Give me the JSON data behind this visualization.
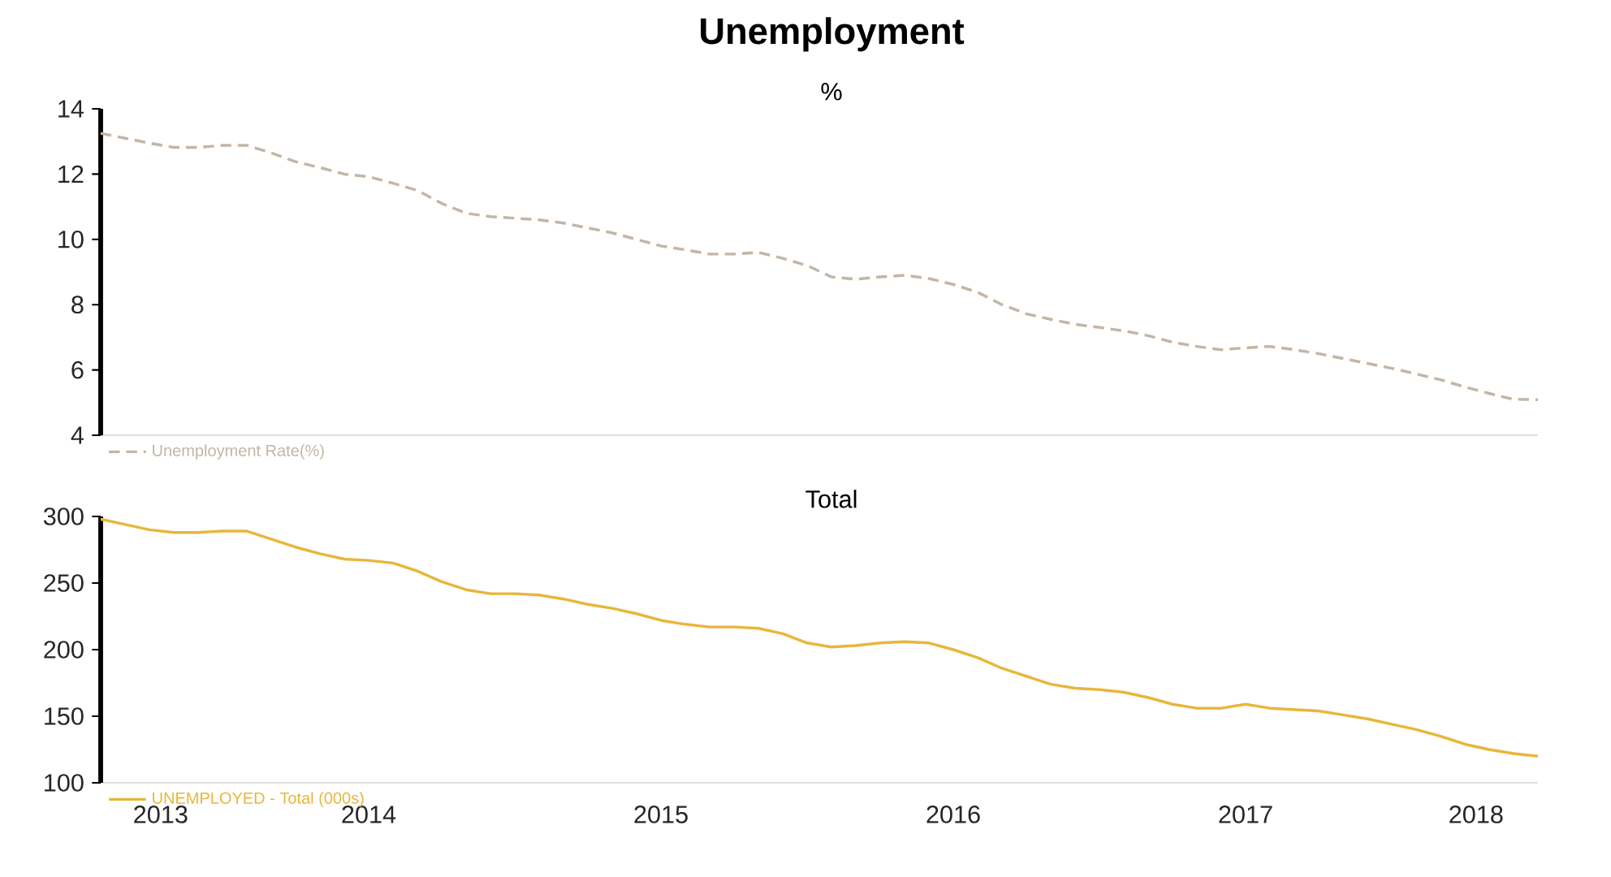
{
  "chart_data": [
    {
      "type": "line",
      "title": "Unemployment",
      "subtitle": "%",
      "x": [
        "2013-08",
        "2013-09",
        "2013-10",
        "2013-11",
        "2013-12",
        "2014-01",
        "2014-02",
        "2014-03",
        "2014-04",
        "2014-05",
        "2014-06",
        "2014-07",
        "2014-08",
        "2014-09",
        "2014-10",
        "2014-11",
        "2014-12",
        "2015-01",
        "2015-02",
        "2015-03",
        "2015-04",
        "2015-05",
        "2015-06",
        "2015-07",
        "2015-08",
        "2015-09",
        "2015-10",
        "2015-11",
        "2015-12",
        "2016-01",
        "2016-02",
        "2016-03",
        "2016-04",
        "2016-05",
        "2016-06",
        "2016-07",
        "2016-08",
        "2016-09",
        "2016-10",
        "2016-11",
        "2016-12",
        "2017-01",
        "2017-02",
        "2017-03",
        "2017-04",
        "2017-05",
        "2017-06",
        "2017-07",
        "2017-08",
        "2017-09",
        "2017-10",
        "2017-11",
        "2017-12",
        "2018-01",
        "2018-02",
        "2018-03",
        "2018-04",
        "2018-05",
        "2018-06",
        "2018-07"
      ],
      "series": [
        {
          "name": "Unemployment Rate(%)",
          "color": "#c4b5a5",
          "line_style": "dashed",
          "values": [
            13.25,
            13.1,
            12.95,
            12.82,
            12.82,
            12.88,
            12.88,
            12.65,
            12.38,
            12.2,
            12.0,
            11.92,
            11.72,
            11.5,
            11.1,
            10.8,
            10.7,
            10.65,
            10.6,
            10.5,
            10.35,
            10.2,
            10.0,
            9.8,
            9.68,
            9.55,
            9.55,
            9.6,
            9.42,
            9.2,
            8.85,
            8.78,
            8.85,
            8.9,
            8.8,
            8.62,
            8.38,
            8.0,
            7.72,
            7.55,
            7.4,
            7.3,
            7.2,
            7.05,
            6.85,
            6.72,
            6.62,
            6.68,
            6.72,
            6.62,
            6.5,
            6.35,
            6.2,
            6.05,
            5.88,
            5.7,
            5.48,
            5.28,
            5.1,
            5.09
          ]
        }
      ],
      "xlim": [
        "2013-08",
        "2018-07"
      ],
      "ylim": [
        4,
        14
      ],
      "yticks": [
        4,
        6,
        8,
        10,
        12,
        14
      ],
      "tick_labels": "y",
      "legend": "bottom left",
      "marker": "none"
    },
    {
      "type": "line",
      "subtitle": "Total",
      "x": [
        "2013-08",
        "2013-09",
        "2013-10",
        "2013-11",
        "2013-12",
        "2014-01",
        "2014-02",
        "2014-03",
        "2014-04",
        "2014-05",
        "2014-06",
        "2014-07",
        "2014-08",
        "2014-09",
        "2014-10",
        "2014-11",
        "2014-12",
        "2015-01",
        "2015-02",
        "2015-03",
        "2015-04",
        "2015-05",
        "2015-06",
        "2015-07",
        "2015-08",
        "2015-09",
        "2015-10",
        "2015-11",
        "2015-12",
        "2016-01",
        "2016-02",
        "2016-03",
        "2016-04",
        "2016-05",
        "2016-06",
        "2016-07",
        "2016-08",
        "2016-09",
        "2016-10",
        "2016-11",
        "2016-12",
        "2017-01",
        "2017-02",
        "2017-03",
        "2017-04",
        "2017-05",
        "2017-06",
        "2017-07",
        "2017-08",
        "2017-09",
        "2017-10",
        "2017-11",
        "2017-12",
        "2018-01",
        "2018-02",
        "2018-03",
        "2018-04",
        "2018-05",
        "2018-06",
        "2018-07"
      ],
      "series": [
        {
          "name": "UNEMPLOYED - Total (000s)",
          "color": "#e8b63a",
          "line_style": "solid",
          "values": [
            298,
            294,
            290,
            288,
            288,
            289,
            289,
            283,
            277,
            272,
            268,
            267,
            265,
            259,
            251,
            245,
            242,
            242,
            241,
            238,
            234,
            231,
            227,
            222,
            219,
            217,
            217,
            216,
            212,
            205,
            202,
            203,
            205,
            206,
            205,
            200,
            194,
            186,
            180,
            174,
            171,
            170,
            168,
            164,
            159,
            156,
            156,
            159,
            156,
            155,
            154,
            151,
            148,
            144,
            140,
            135,
            129,
            125,
            122,
            120
          ]
        }
      ],
      "xticks": [
        {
          "value": "2013-10-15",
          "label": "2013"
        },
        {
          "value": "2014-07",
          "label": "2014"
        },
        {
          "value": "2015-07",
          "label": "2015"
        },
        {
          "value": "2016-07",
          "label": "2016"
        },
        {
          "value": "2017-07",
          "label": "2017"
        },
        {
          "value": "2018-04-15",
          "label": "2018"
        }
      ],
      "xlim": [
        "2013-08",
        "2018-07"
      ],
      "ylim": [
        100,
        300
      ],
      "yticks": [
        100,
        150,
        200,
        250,
        300
      ],
      "legend": "bottom left",
      "marker": "none"
    }
  ]
}
